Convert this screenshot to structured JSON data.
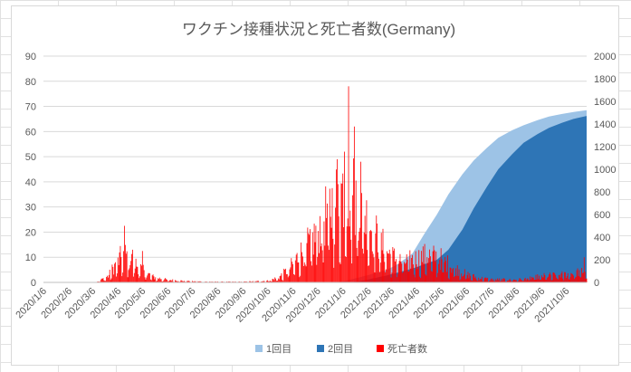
{
  "chart_data": {
    "type": "area",
    "title": "ワクチン接種状況と死亡者数(Germany)",
    "left_axis": {
      "min": 0,
      "max": 90,
      "step": 10
    },
    "right_axis": {
      "min": 0,
      "max": 2000,
      "step": 200
    },
    "x_tick_labels": [
      "2020/1/6",
      "2020/2/6",
      "2020/3/6",
      "2020/4/6",
      "2020/5/6",
      "2020/6/6",
      "2020/7/6",
      "2020/8/6",
      "2020/9/6",
      "2020/10/6",
      "2020/11/6",
      "2020/12/6",
      "2021/1/6",
      "2021/2/6",
      "2021/3/6",
      "2021/4/6",
      "2021/5/6",
      "2021/6/6",
      "2021/7/6",
      "2021/8/6",
      "2021/9/6",
      "2021/10/6"
    ],
    "x_range": [
      "2020/1/6",
      "2021/10/31"
    ],
    "grid": "horizontal",
    "legend_position": "bottom",
    "series": [
      {
        "name": "1回目",
        "axis": "left",
        "color": "#9dc3e6",
        "type": "area",
        "points": [
          [
            "2020/12/27",
            0
          ],
          [
            "2021/1/10",
            0.7
          ],
          [
            "2021/2/1",
            2.5
          ],
          [
            "2021/3/1",
            5
          ],
          [
            "2021/3/15",
            7.5
          ],
          [
            "2021/4/1",
            11.5
          ],
          [
            "2021/4/15",
            19
          ],
          [
            "2021/5/1",
            27
          ],
          [
            "2021/5/15",
            35
          ],
          [
            "2021/6/1",
            43
          ],
          [
            "2021/6/15",
            48.5
          ],
          [
            "2021/7/1",
            53.5
          ],
          [
            "2021/7/15",
            57.5
          ],
          [
            "2021/8/1",
            60.5
          ],
          [
            "2021/8/15",
            62.5
          ],
          [
            "2021/9/1",
            64.5
          ],
          [
            "2021/9/15",
            66
          ],
          [
            "2021/10/1",
            67
          ],
          [
            "2021/10/15",
            67.8
          ],
          [
            "2021/10/31",
            68.5
          ]
        ]
      },
      {
        "name": "2回目",
        "axis": "left",
        "color": "#2e75b6",
        "type": "area",
        "points": [
          [
            "2021/1/15",
            0
          ],
          [
            "2021/2/1",
            0.8
          ],
          [
            "2021/3/1",
            2.8
          ],
          [
            "2021/4/1",
            5.5
          ],
          [
            "2021/5/1",
            9
          ],
          [
            "2021/5/15",
            13
          ],
          [
            "2021/6/1",
            21
          ],
          [
            "2021/6/15",
            29.5
          ],
          [
            "2021/7/1",
            38
          ],
          [
            "2021/7/15",
            45
          ],
          [
            "2021/8/1",
            51
          ],
          [
            "2021/8/15",
            55.5
          ],
          [
            "2021/9/1",
            59
          ],
          [
            "2021/9/15",
            61.5
          ],
          [
            "2021/10/1",
            63.5
          ],
          [
            "2021/10/15",
            65
          ],
          [
            "2021/10/31",
            66.2
          ]
        ]
      },
      {
        "name": "死亡者数",
        "axis": "right",
        "color": "#ff0000",
        "type": "bar",
        "envelope": [
          [
            "2020/1/6",
            0
          ],
          [
            "2020/3/10",
            0
          ],
          [
            "2020/3/25",
            60
          ],
          [
            "2020/4/1",
            150
          ],
          [
            "2020/4/10",
            250
          ],
          [
            "2020/4/15",
            270
          ],
          [
            "2020/4/25",
            200
          ],
          [
            "2020/5/6",
            120
          ],
          [
            "2020/5/20",
            50
          ],
          [
            "2020/6/6",
            25
          ],
          [
            "2020/7/6",
            10
          ],
          [
            "2020/8/6",
            6
          ],
          [
            "2020/9/6",
            6
          ],
          [
            "2020/10/6",
            15
          ],
          [
            "2020/10/20",
            50
          ],
          [
            "2020/11/1",
            130
          ],
          [
            "2020/11/15",
            280
          ],
          [
            "2020/12/1",
            430
          ],
          [
            "2020/12/15",
            650
          ],
          [
            "2021/1/1",
            850
          ],
          [
            "2021/1/8",
            950
          ],
          [
            "2021/1/15",
            900
          ],
          [
            "2021/1/25",
            800
          ],
          [
            "2021/2/6",
            600
          ],
          [
            "2021/2/20",
            400
          ],
          [
            "2021/3/6",
            260
          ],
          [
            "2021/3/20",
            200
          ],
          [
            "2021/4/6",
            230
          ],
          [
            "2021/4/20",
            270
          ],
          [
            "2021/5/6",
            230
          ],
          [
            "2021/5/20",
            150
          ],
          [
            "2021/6/6",
            80
          ],
          [
            "2021/6/20",
            45
          ],
          [
            "2021/7/6",
            30
          ],
          [
            "2021/8/6",
            25
          ],
          [
            "2021/9/6",
            60
          ],
          [
            "2021/10/6",
            80
          ],
          [
            "2021/10/31",
            120
          ]
        ],
        "peaks": [
          [
            "2020/4/14",
            22.5
          ],
          [
            "2020/4/24",
            13
          ],
          [
            "2020/5/6",
            12.5
          ],
          [
            "2020/12/30",
            49
          ],
          [
            "2021/1/8",
            52
          ],
          [
            "2021/1/13",
            78
          ],
          [
            "2021/1/20",
            62
          ],
          [
            "2021/1/28",
            48
          ],
          [
            "2021/10/28",
            10
          ]
        ]
      }
    ]
  }
}
